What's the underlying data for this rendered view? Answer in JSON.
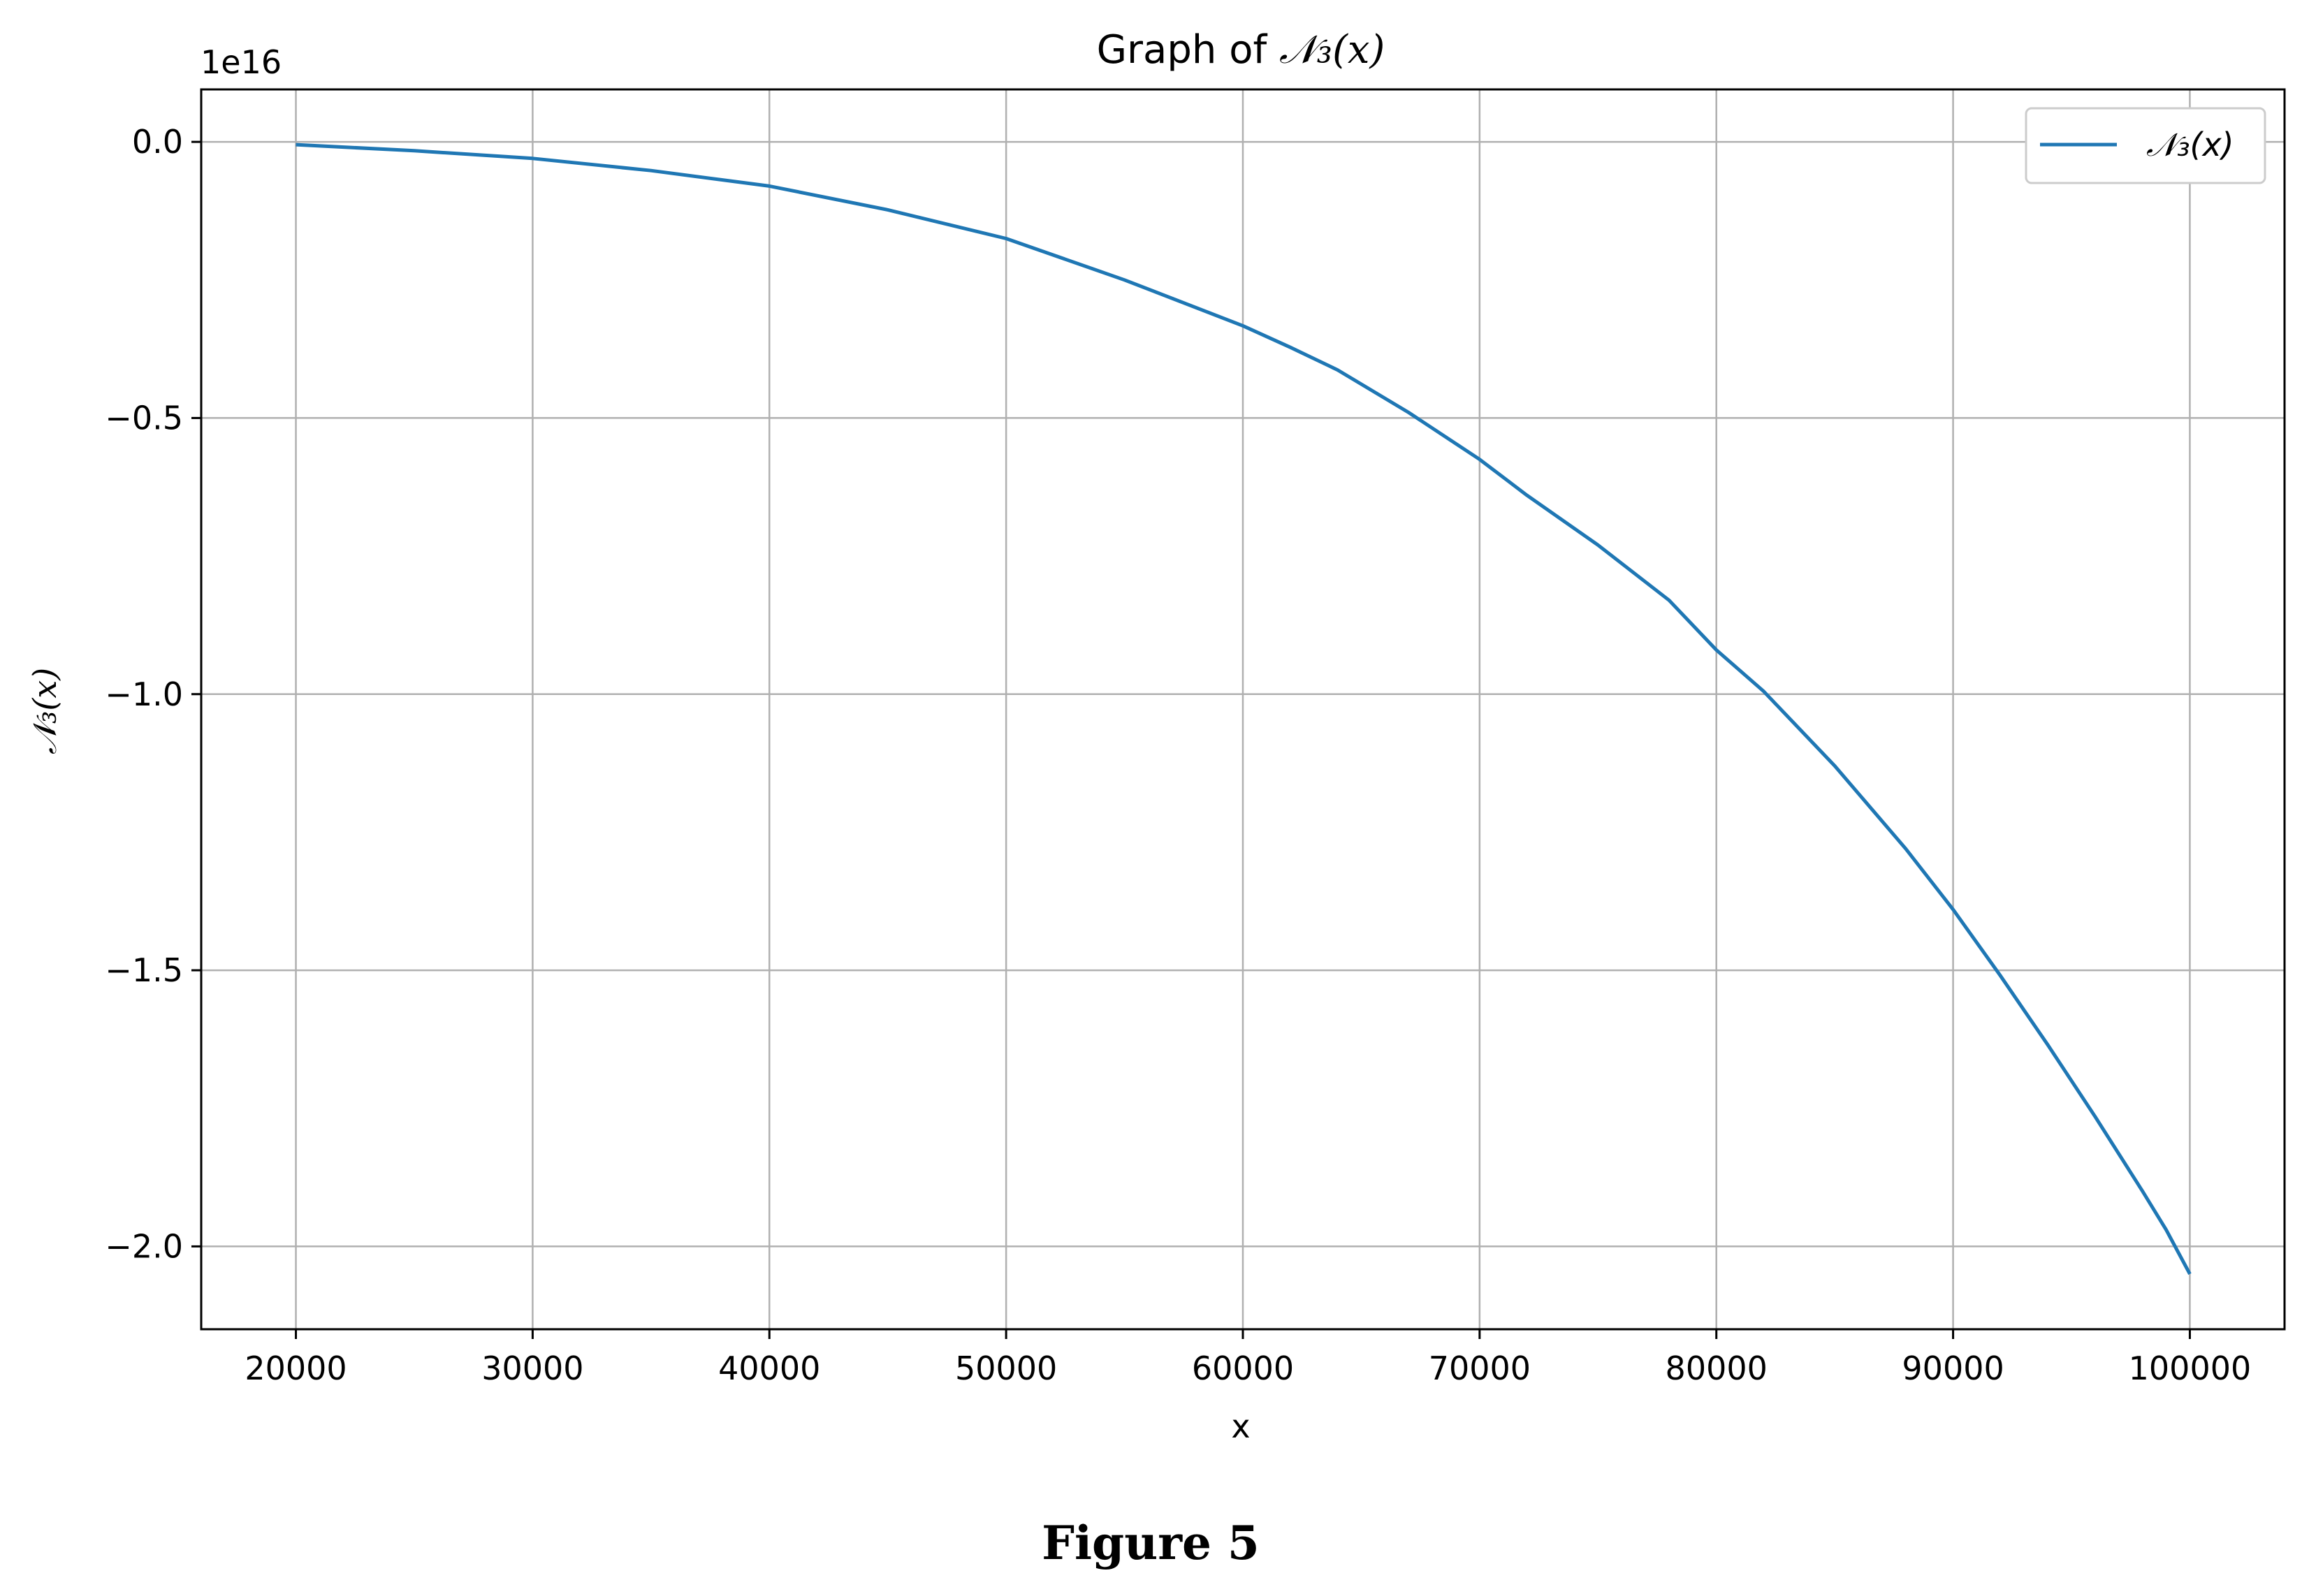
{
  "chart_data": {
    "type": "line",
    "title": "Graph of 𝒩₃(x)",
    "title_prefix": "Graph of ",
    "title_math": "𝒩₃(x)",
    "xlabel": "x",
    "ylabel": "𝒩₃(x)",
    "y_multiplier_label": "1e16",
    "y_multiplier": 1e+16,
    "xlim": [
      16000,
      104000
    ],
    "ylim": [
      -2.15,
      0.095
    ],
    "x_ticks": [
      20000,
      30000,
      40000,
      50000,
      60000,
      70000,
      80000,
      90000,
      100000
    ],
    "x_tick_labels": [
      "20000",
      "30000",
      "40000",
      "50000",
      "60000",
      "70000",
      "80000",
      "90000",
      "100000"
    ],
    "y_ticks": [
      0.0,
      -0.5,
      -1.0,
      -1.5,
      -2.0
    ],
    "y_tick_labels": [
      "0.0",
      "−0.5",
      "−1.0",
      "−1.5",
      "−2.0"
    ],
    "grid": true,
    "legend_position": "top-right",
    "series": [
      {
        "name": "𝒩₃(x)",
        "color": "#1f77b4",
        "x": [
          20000,
          25000,
          30000,
          35000,
          40000,
          45000,
          50000,
          55000,
          60000,
          62000,
          64000,
          67000,
          70000,
          72000,
          75000,
          78000,
          80000,
          82000,
          85000,
          88000,
          90000,
          92000,
          94000,
          96000,
          98000,
          99000,
          100000
        ],
        "y": [
          -0.005,
          -0.016,
          -0.03,
          -0.052,
          -0.08,
          -0.123,
          -0.175,
          -0.25,
          -0.333,
          -0.372,
          -0.413,
          -0.49,
          -0.575,
          -0.64,
          -0.73,
          -0.83,
          -0.92,
          -0.995,
          -1.13,
          -1.28,
          -1.39,
          -1.51,
          -1.635,
          -1.765,
          -1.9,
          -1.97,
          -2.05
        ]
      }
    ]
  },
  "caption": "Figure 5"
}
